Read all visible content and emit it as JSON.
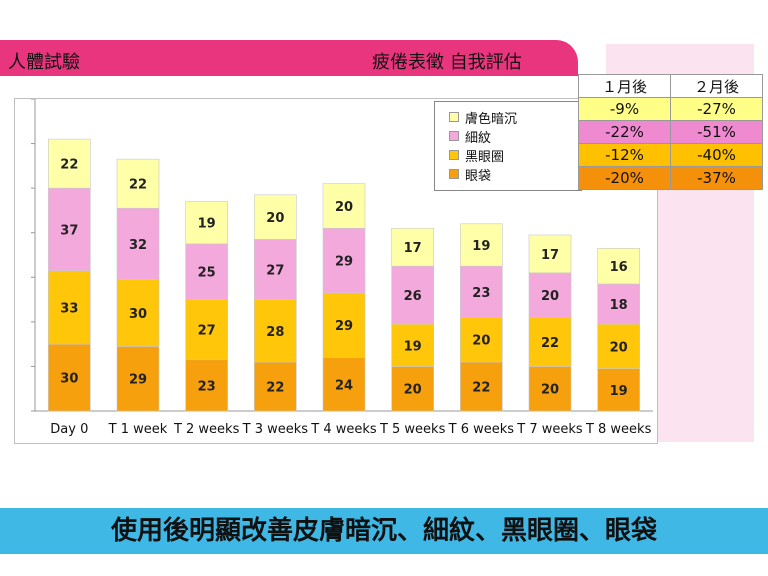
{
  "header": {
    "title_left": "人體試驗",
    "title_right": "疲倦表徵 自我評估"
  },
  "legend": {
    "items": [
      {
        "label": "膚色暗沉",
        "color": "#ffffa8"
      },
      {
        "label": "細紋",
        "color": "#f4a9dc"
      },
      {
        "label": "黑眼圈",
        "color": "#ffc60a"
      },
      {
        "label": "眼袋",
        "color": "#f5a00c"
      }
    ]
  },
  "table": {
    "headers": [
      "１月後",
      "２月後"
    ],
    "rows": [
      {
        "m1": "-9%",
        "m2": "-27%",
        "color": "#ffff88"
      },
      {
        "m1": "-22%",
        "m2": "-51%",
        "color": "#f08ad0"
      },
      {
        "m1": "-12%",
        "m2": "-40%",
        "color": "#ffc000"
      },
      {
        "m1": "-20%",
        "m2": "-37%",
        "color": "#f5900a"
      }
    ]
  },
  "footer": {
    "text": "使用後明顯改善皮膚暗沉、細紋、黑眼圈、眼袋"
  },
  "chart_data": {
    "type": "bar",
    "stacked": true,
    "categories": [
      "Day 0",
      "T 1 week",
      "T 2 weeks",
      "T 3 weeks",
      "T 4 weeks",
      "T 5 weeks",
      "T 6 weeks",
      "T 7 weeks",
      "T 8 weeks"
    ],
    "series": [
      {
        "name": "眼袋",
        "values": [
          30,
          29,
          23,
          22,
          24,
          20,
          22,
          20,
          19
        ],
        "color": "#f5a00c"
      },
      {
        "name": "黑眼圈",
        "values": [
          33,
          30,
          27,
          28,
          29,
          19,
          20,
          22,
          20
        ],
        "color": "#ffc60a"
      },
      {
        "name": "細紋",
        "values": [
          37,
          32,
          25,
          27,
          29,
          26,
          23,
          20,
          18
        ],
        "color": "#f4a9dc"
      },
      {
        "name": "膚色暗沉",
        "values": [
          22,
          22,
          19,
          20,
          20,
          17,
          19,
          17,
          16
        ],
        "color": "#ffffa8"
      }
    ],
    "ylim": [
      0,
      140
    ],
    "grid": false,
    "legend_position": "top-right"
  }
}
